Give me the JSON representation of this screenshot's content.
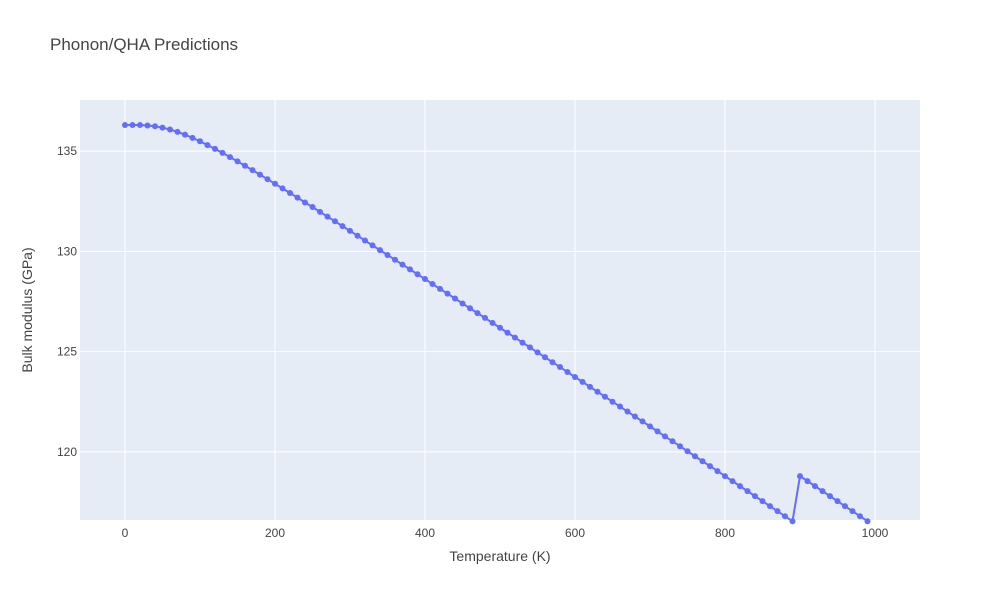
{
  "chart_data": {
    "type": "scatter",
    "mode": "lines+markers",
    "title": "Phonon/QHA Predictions",
    "xlabel": "Temperature (K)",
    "ylabel": "Bulk modulus (GPa)",
    "xlim": [
      -60,
      1060
    ],
    "ylim": [
      116.6,
      137.55
    ],
    "xticks": [
      0,
      200,
      400,
      600,
      800,
      1000
    ],
    "yticks": [
      120,
      125,
      130,
      135
    ],
    "grid": true,
    "legend": "none",
    "colors": {
      "series": "#636efa",
      "plot_bg": "#e5ecf6",
      "grid": "#ffffff",
      "text": "#444444"
    },
    "series": [
      {
        "x": [
          0,
          10,
          20,
          30,
          40,
          50,
          60,
          70,
          80,
          90,
          100,
          110,
          120,
          130,
          140,
          150,
          160,
          170,
          180,
          190,
          200,
          210,
          220,
          230,
          240,
          250,
          260,
          270,
          280,
          290,
          300,
          310,
          320,
          330,
          340,
          350,
          360,
          370,
          380,
          390,
          400,
          410,
          420,
          430,
          440,
          450,
          460,
          470,
          480,
          490,
          500,
          510,
          520,
          530,
          540,
          550,
          560,
          570,
          580,
          590,
          600,
          610,
          620,
          630,
          640,
          650,
          660,
          670,
          680,
          690,
          700,
          710,
          720,
          730,
          740,
          750,
          760,
          770,
          780,
          790,
          800,
          810,
          820,
          830,
          840,
          850,
          860,
          870,
          880,
          890,
          900,
          910,
          920,
          930,
          940,
          950,
          960,
          970,
          980,
          990
        ],
        "y": [
          136.3,
          136.3,
          136.3,
          136.28,
          136.24,
          136.17,
          136.08,
          135.96,
          135.82,
          135.66,
          135.49,
          135.3,
          135.11,
          134.91,
          134.7,
          134.49,
          134.27,
          134.05,
          133.83,
          133.6,
          133.37,
          133.14,
          132.91,
          132.68,
          132.44,
          132.21,
          131.97,
          131.73,
          131.5,
          131.26,
          131.02,
          130.78,
          130.54,
          130.3,
          130.06,
          129.82,
          129.58,
          129.34,
          129.1,
          128.86,
          128.62,
          128.37,
          128.13,
          127.89,
          127.65,
          127.4,
          127.16,
          126.92,
          126.68,
          126.43,
          126.19,
          125.94,
          125.7,
          125.45,
          125.21,
          124.96,
          124.72,
          124.47,
          124.23,
          123.98,
          123.73,
          123.49,
          123.24,
          123.0,
          122.75,
          122.5,
          122.26,
          122.01,
          121.76,
          121.52,
          121.27,
          121.02,
          120.77,
          120.53,
          120.28,
          120.03,
          119.78,
          119.53,
          119.29,
          119.04,
          118.79,
          118.54,
          118.29,
          118.04,
          117.79,
          117.54,
          117.29,
          117.04,
          116.79,
          116.54,
          118.79,
          118.54,
          118.29,
          118.04,
          117.79,
          117.54,
          117.29,
          117.04,
          116.79,
          116.54
        ]
      }
    ]
  }
}
